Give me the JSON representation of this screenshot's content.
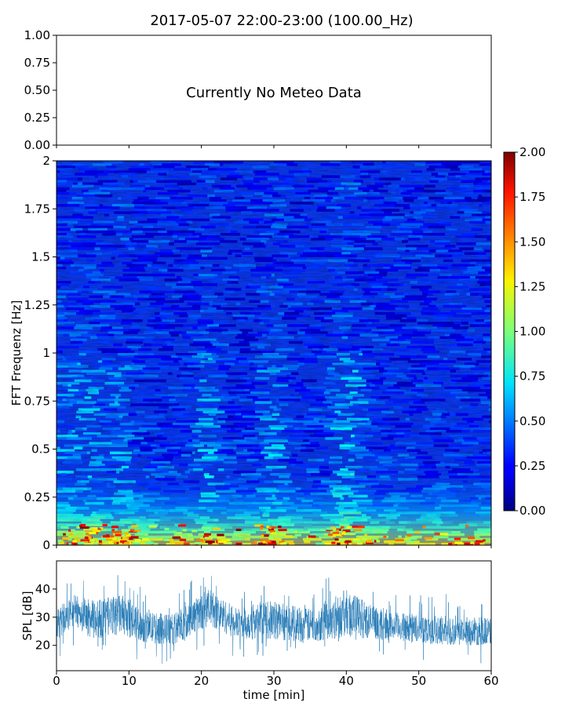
{
  "chart_data": [
    {
      "type": "line",
      "title": "2017-05-07 22:00-23:00 (100.00_Hz)",
      "annotation": "Currently No Meteo Data",
      "xlim": [
        0,
        60
      ],
      "ylim": [
        0,
        1
      ],
      "yticks": [
        "0.00",
        "0.25",
        "0.50",
        "0.75",
        "1.00"
      ],
      "xtick_labels_shown": false,
      "series": []
    },
    {
      "type": "heatmap",
      "ylabel": "FFT Frequenz [Hz]",
      "xlim": [
        0,
        60
      ],
      "ylim": [
        0,
        2
      ],
      "yticks": [
        "0",
        "0.25",
        "0.5",
        "0.75",
        "1",
        "1.25",
        "1.5",
        "1.75",
        "2"
      ],
      "xtick_labels_shown": false,
      "colormap": "jet",
      "colorbar": {
        "range": [
          0,
          2
        ],
        "ticks": [
          "0.00",
          "0.25",
          "0.50",
          "0.75",
          "1.00",
          "1.25",
          "1.50",
          "1.75",
          "2.00"
        ]
      },
      "approx_mean_level_by_frequency": [
        {
          "freq": 0.0,
          "level": 1.2
        },
        {
          "freq": 0.05,
          "level": 0.9
        },
        {
          "freq": 0.1,
          "level": 0.6
        },
        {
          "freq": 0.25,
          "level": 0.4
        },
        {
          "freq": 0.5,
          "level": 0.33
        },
        {
          "freq": 1.0,
          "level": 0.3
        },
        {
          "freq": 2.0,
          "level": 0.28
        }
      ],
      "approx_high_activity_minutes": [
        2,
        5,
        9,
        21,
        30,
        39,
        41
      ]
    },
    {
      "type": "line",
      "xlabel": "time [min]",
      "ylabel": "SPL [dB]",
      "xlim": [
        0,
        60
      ],
      "ylim": [
        11,
        50
      ],
      "xticks": [
        "0",
        "10",
        "20",
        "30",
        "40",
        "50",
        "60"
      ],
      "yticks": [
        "20",
        "30",
        "40"
      ],
      "series_color": "#1f77b4",
      "approx_envelope": [
        {
          "t": 0,
          "low": 21,
          "high": 33
        },
        {
          "t": 2.5,
          "low": 27,
          "high": 38
        },
        {
          "t": 5,
          "low": 22,
          "high": 36
        },
        {
          "t": 9,
          "low": 24,
          "high": 38
        },
        {
          "t": 12,
          "low": 21,
          "high": 32
        },
        {
          "t": 16,
          "low": 20,
          "high": 31
        },
        {
          "t": 21,
          "low": 27,
          "high": 40
        },
        {
          "t": 25,
          "low": 22,
          "high": 33
        },
        {
          "t": 30,
          "low": 22,
          "high": 36
        },
        {
          "t": 35,
          "low": 21,
          "high": 33
        },
        {
          "t": 40,
          "low": 23,
          "high": 40
        },
        {
          "t": 45,
          "low": 22,
          "high": 32
        },
        {
          "t": 50,
          "low": 21,
          "high": 31
        },
        {
          "t": 55,
          "low": 20,
          "high": 30
        },
        {
          "t": 60,
          "low": 20,
          "high": 30
        }
      ]
    }
  ]
}
